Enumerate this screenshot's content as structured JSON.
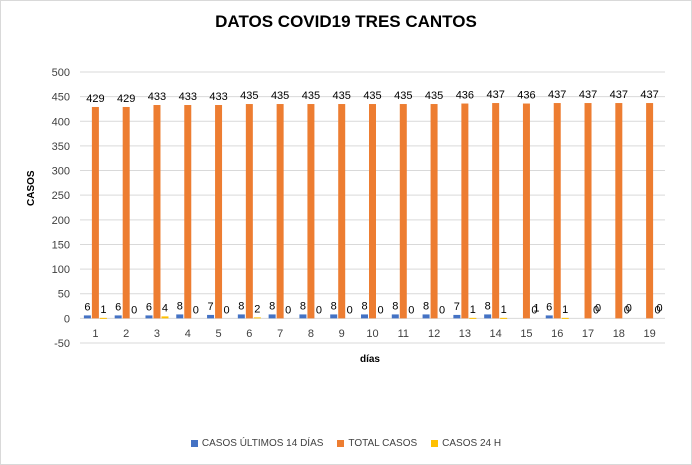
{
  "chart_data": {
    "type": "bar",
    "title": "DATOS COVID19 TRES CANTOS",
    "xlabel": "días",
    "ylabel": "CASOS",
    "categories": [
      "1",
      "2",
      "3",
      "4",
      "5",
      "6",
      "7",
      "8",
      "9",
      "10",
      "11",
      "12",
      "13",
      "14",
      "15",
      "16",
      "17",
      "18",
      "19"
    ],
    "ylim": [
      -50,
      500
    ],
    "yticks": [
      "500",
      "450",
      "400",
      "350",
      "300",
      "250",
      "200",
      "150",
      "100",
      "50",
      "0",
      "-50"
    ],
    "grid": true,
    "legend": "bottom",
    "series": [
      {
        "name": "CASOS ÚLTIMOS 14 DÍAS",
        "color": "#4472c4",
        "values": [
          6,
          6,
          6,
          8,
          7,
          8,
          8,
          8,
          8,
          8,
          8,
          8,
          7,
          8,
          null,
          6,
          null,
          null,
          null
        ],
        "labels": [
          "6",
          "6",
          "6",
          "8",
          "7",
          "8",
          "8",
          "8",
          "8",
          "8",
          "8",
          "8",
          "7",
          "8",
          "",
          "6",
          "",
          "",
          ""
        ]
      },
      {
        "name": "TOTAL CASOS",
        "color": "#ed7d31",
        "values": [
          429,
          429,
          433,
          433,
          433,
          435,
          435,
          435,
          435,
          435,
          435,
          435,
          436,
          437,
          436,
          437,
          437,
          437,
          437
        ],
        "labels": [
          "429",
          "429",
          "433",
          "433",
          "433",
          "435",
          "435",
          "435",
          "435",
          "435",
          "435",
          "435",
          "436",
          "437",
          "436",
          "437",
          "437",
          "437",
          "437"
        ]
      },
      {
        "name": "CASOS 24 H",
        "color": "#ffc000",
        "values": [
          1,
          0,
          4,
          0,
          0,
          2,
          0,
          0,
          0,
          0,
          0,
          0,
          1,
          1,
          0,
          1,
          0,
          0,
          0
        ],
        "labels": [
          "1",
          "0",
          "4",
          "0",
          "0",
          "2",
          "0",
          "0",
          "0",
          "0",
          "0",
          "0",
          "1",
          "1",
          "0",
          "1",
          "0",
          "0",
          "0"
        ]
      }
    ],
    "extra_labels": [
      {
        "category": "15",
        "text": "1"
      },
      {
        "category": "17",
        "text": "0"
      },
      {
        "category": "18",
        "text": "0"
      },
      {
        "category": "19",
        "text": "0"
      }
    ]
  }
}
